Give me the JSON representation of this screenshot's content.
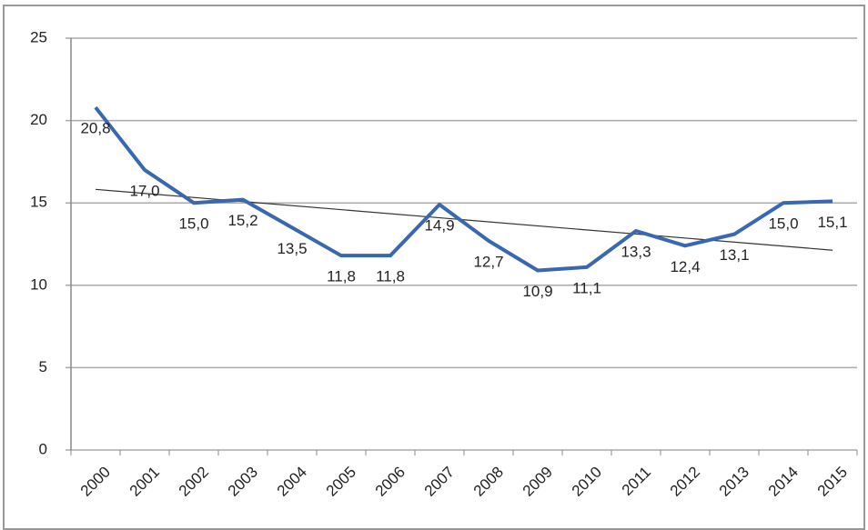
{
  "chart_data": {
    "type": "line",
    "categories": [
      "2000",
      "2001",
      "2002",
      "2003",
      "2004",
      "2005",
      "2006",
      "2007",
      "2008",
      "2009",
      "2010",
      "2011",
      "2012",
      "2013",
      "2014",
      "2015"
    ],
    "values": [
      20.8,
      17.0,
      15.0,
      15.2,
      13.5,
      11.8,
      11.8,
      14.9,
      12.7,
      10.9,
      11.1,
      13.3,
      12.4,
      13.1,
      15.0,
      15.1
    ],
    "value_labels": [
      "20,8",
      "17,0",
      "15,0",
      "15,2",
      "13,5",
      "11,8",
      "11,8",
      "14,9",
      "12,7",
      "10,9",
      "11,1",
      "13,3",
      "12,4",
      "13,1",
      "15,0",
      "15,1"
    ],
    "color": "#3a68b0",
    "trendline": true,
    "ylim": [
      0,
      25
    ],
    "yticks": [
      0,
      5,
      10,
      15,
      20,
      25
    ],
    "grid": true
  }
}
